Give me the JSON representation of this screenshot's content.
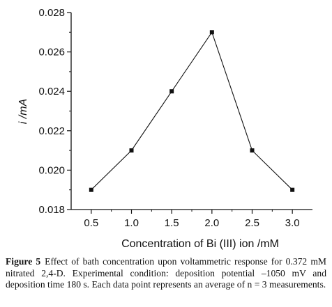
{
  "chart_data": {
    "type": "line",
    "x": [
      0.5,
      1.0,
      1.5,
      2.0,
      2.5,
      3.0
    ],
    "y": [
      0.019,
      0.021,
      0.024,
      0.027,
      0.021,
      0.019
    ],
    "xlabel": "Concentration of Bi (III) ion /mM",
    "ylabel": "i /mA",
    "xlim": [
      0.25,
      3.25
    ],
    "ylim": [
      0.018,
      0.028
    ],
    "x_ticks": [
      "0.5",
      "1.0",
      "1.5",
      "2.0",
      "2.5",
      "3.0"
    ],
    "y_ticks": [
      "0.018",
      "0.020",
      "0.022",
      "0.024",
      "0.026",
      "0.028"
    ],
    "marker": "square",
    "grid": false,
    "color": "#111111"
  },
  "caption": {
    "label": "Figure 5",
    "text": "Effect of bath concentration upon voltammetric response for 0.372 mM nitrated 2,4-D. Experimental condition: deposition potential –1050 mV and deposition time 180 s. Each data point represents an average of n = 3 measurements."
  }
}
